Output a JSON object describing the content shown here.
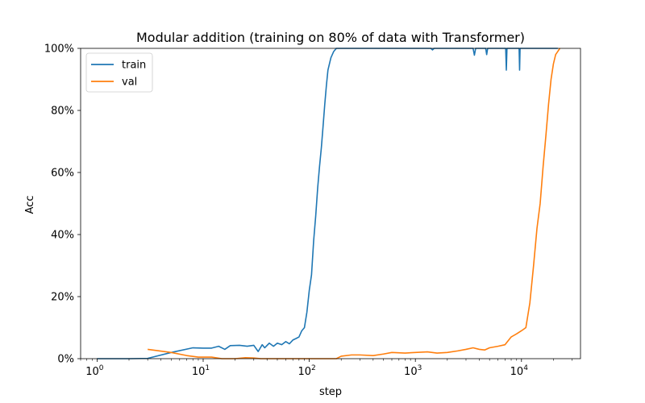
{
  "chart_data": {
    "type": "line",
    "title": "Modular addition (training on 80% of data with Transformer)",
    "xlabel": "step",
    "ylabel": "Acc",
    "xscale": "log",
    "xlim": [
      0.7,
      36000
    ],
    "ylim": [
      0,
      1
    ],
    "x_ticks": [
      {
        "value": 1,
        "base": "10",
        "exp": "0"
      },
      {
        "value": 10,
        "base": "10",
        "exp": "1"
      },
      {
        "value": 100,
        "base": "10",
        "exp": "2"
      },
      {
        "value": 1000,
        "base": "10",
        "exp": "3"
      },
      {
        "value": 10000,
        "base": "10",
        "exp": "4"
      }
    ],
    "y_ticks": [
      {
        "value": 0,
        "label": "0%"
      },
      {
        "value": 0.2,
        "label": "20%"
      },
      {
        "value": 0.4,
        "label": "40%"
      },
      {
        "value": 0.6,
        "label": "60%"
      },
      {
        "value": 0.8,
        "label": "80%"
      },
      {
        "value": 1.0,
        "label": "100%"
      }
    ],
    "grid": false,
    "legend": "top-left",
    "series": [
      {
        "name": "train",
        "color": "#1f77b4",
        "points": [
          [
            1,
            0.0
          ],
          [
            2,
            0.0
          ],
          [
            3,
            0.001
          ],
          [
            5,
            0.02
          ],
          [
            8,
            0.035
          ],
          [
            10,
            0.034
          ],
          [
            12,
            0.034
          ],
          [
            14,
            0.04
          ],
          [
            16,
            0.03
          ],
          [
            18,
            0.042
          ],
          [
            22,
            0.043
          ],
          [
            26,
            0.04
          ],
          [
            30,
            0.043
          ],
          [
            33,
            0.023
          ],
          [
            36,
            0.045
          ],
          [
            38,
            0.035
          ],
          [
            42,
            0.05
          ],
          [
            46,
            0.04
          ],
          [
            50,
            0.05
          ],
          [
            55,
            0.045
          ],
          [
            60,
            0.055
          ],
          [
            65,
            0.048
          ],
          [
            70,
            0.06
          ],
          [
            75,
            0.065
          ],
          [
            80,
            0.07
          ],
          [
            85,
            0.09
          ],
          [
            90,
            0.1
          ],
          [
            95,
            0.15
          ],
          [
            100,
            0.22
          ],
          [
            105,
            0.27
          ],
          [
            110,
            0.38
          ],
          [
            115,
            0.46
          ],
          [
            120,
            0.55
          ],
          [
            125,
            0.62
          ],
          [
            130,
            0.68
          ],
          [
            135,
            0.75
          ],
          [
            140,
            0.82
          ],
          [
            145,
            0.88
          ],
          [
            150,
            0.93
          ],
          [
            160,
            0.97
          ],
          [
            170,
            0.99
          ],
          [
            180,
            1.0
          ],
          [
            300,
            1.0
          ],
          [
            1400,
            1.0
          ],
          [
            1450,
            0.995
          ],
          [
            1500,
            1.0
          ],
          [
            3500,
            1.0
          ],
          [
            3600,
            0.978
          ],
          [
            3700,
            1.0
          ],
          [
            4600,
            1.0
          ],
          [
            4700,
            0.98
          ],
          [
            4800,
            1.0
          ],
          [
            7100,
            1.0
          ],
          [
            7200,
            0.93
          ],
          [
            7300,
            1.0
          ],
          [
            9500,
            1.0
          ],
          [
            9600,
            0.93
          ],
          [
            9700,
            1.0
          ],
          [
            22000,
            1.0
          ]
        ]
      },
      {
        "name": "val",
        "color": "#ff7f0e",
        "points": [
          [
            3,
            0.03
          ],
          [
            5,
            0.02
          ],
          [
            7,
            0.01
          ],
          [
            9,
            0.005
          ],
          [
            12,
            0.005
          ],
          [
            15,
            0.0
          ],
          [
            20,
            0.0
          ],
          [
            25,
            0.003
          ],
          [
            30,
            0.002
          ],
          [
            35,
            0.0
          ],
          [
            50,
            0.0
          ],
          [
            100,
            0.0
          ],
          [
            180,
            0.0
          ],
          [
            200,
            0.008
          ],
          [
            250,
            0.012
          ],
          [
            300,
            0.012
          ],
          [
            400,
            0.01
          ],
          [
            500,
            0.015
          ],
          [
            600,
            0.02
          ],
          [
            800,
            0.018
          ],
          [
            1000,
            0.02
          ],
          [
            1300,
            0.022
          ],
          [
            1600,
            0.018
          ],
          [
            2000,
            0.02
          ],
          [
            2500,
            0.025
          ],
          [
            3000,
            0.03
          ],
          [
            3500,
            0.035
          ],
          [
            4000,
            0.03
          ],
          [
            4500,
            0.028
          ],
          [
            5000,
            0.035
          ],
          [
            6000,
            0.04
          ],
          [
            7000,
            0.045
          ],
          [
            8000,
            0.07
          ],
          [
            9000,
            0.08
          ],
          [
            10000,
            0.09
          ],
          [
            11000,
            0.1
          ],
          [
            12000,
            0.18
          ],
          [
            13000,
            0.3
          ],
          [
            14000,
            0.42
          ],
          [
            15000,
            0.5
          ],
          [
            16000,
            0.62
          ],
          [
            17000,
            0.72
          ],
          [
            18000,
            0.82
          ],
          [
            19000,
            0.9
          ],
          [
            20000,
            0.95
          ],
          [
            21000,
            0.98
          ],
          [
            22000,
            0.99
          ],
          [
            23000,
            1.0
          ]
        ]
      }
    ]
  }
}
